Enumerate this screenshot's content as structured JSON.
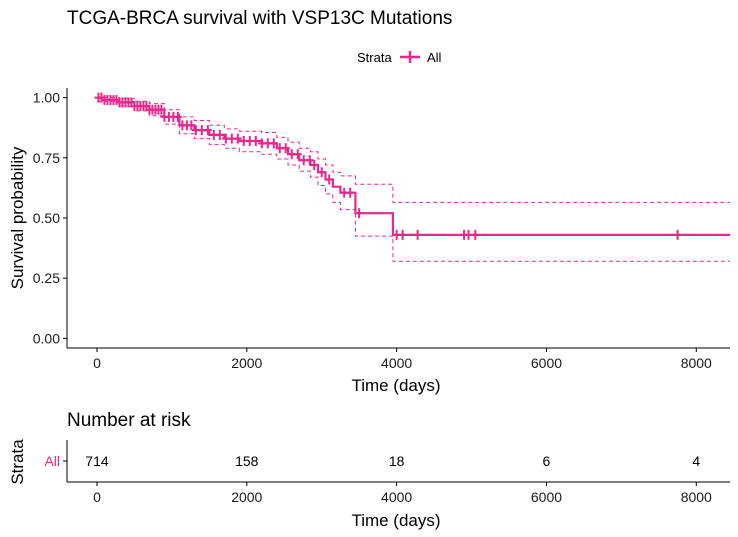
{
  "chart_data": [
    {
      "type": "line",
      "title": "TCGA-BRCA survival with VSP13C Mutations",
      "legend": {
        "title": "Strata",
        "position": "top",
        "entries": [
          "All"
        ]
      },
      "xlabel": "Time (days)",
      "ylabel": "Survival probability",
      "xlim": [
        -400,
        8450
      ],
      "ylim": [
        -0.04,
        1.04
      ],
      "xticks": [
        0,
        2000,
        4000,
        6000,
        8000
      ],
      "yticks": [
        0.0,
        0.25,
        0.5,
        0.75,
        1.0
      ],
      "ytick_labels": [
        "0.00",
        "0.25",
        "0.50",
        "0.75",
        "1.00"
      ],
      "grid": false,
      "color": "#E7298A",
      "series": [
        {
          "name": "All",
          "step": [
            [
              0,
              1.0
            ],
            [
              100,
              0.99
            ],
            [
              300,
              0.98
            ],
            [
              500,
              0.965
            ],
            [
              700,
              0.95
            ],
            [
              900,
              0.92
            ],
            [
              1100,
              0.885
            ],
            [
              1300,
              0.865
            ],
            [
              1500,
              0.845
            ],
            [
              1700,
              0.83
            ],
            [
              1900,
              0.82
            ],
            [
              2200,
              0.81
            ],
            [
              2400,
              0.79
            ],
            [
              2550,
              0.765
            ],
            [
              2700,
              0.74
            ],
            [
              2850,
              0.72
            ],
            [
              2950,
              0.69
            ],
            [
              3050,
              0.66
            ],
            [
              3150,
              0.63
            ],
            [
              3250,
              0.605
            ],
            [
              3450,
              0.52
            ],
            [
              3950,
              0.43
            ],
            [
              8450,
              0.43
            ]
          ],
          "upper": [
            [
              0,
              1.0
            ],
            [
              300,
              0.995
            ],
            [
              500,
              0.985
            ],
            [
              700,
              0.975
            ],
            [
              900,
              0.95
            ],
            [
              1100,
              0.92
            ],
            [
              1300,
              0.905
            ],
            [
              1500,
              0.885
            ],
            [
              1700,
              0.87
            ],
            [
              1900,
              0.86
            ],
            [
              2200,
              0.855
            ],
            [
              2400,
              0.835
            ],
            [
              2550,
              0.815
            ],
            [
              2700,
              0.79
            ],
            [
              2850,
              0.775
            ],
            [
              2950,
              0.745
            ],
            [
              3050,
              0.72
            ],
            [
              3150,
              0.69
            ],
            [
              3250,
              0.675
            ],
            [
              3450,
              0.64
            ],
            [
              3950,
              0.565
            ],
            [
              8450,
              0.565
            ]
          ],
          "lower": [
            [
              0,
              0.985
            ],
            [
              300,
              0.965
            ],
            [
              500,
              0.945
            ],
            [
              700,
              0.925
            ],
            [
              900,
              0.89
            ],
            [
              1100,
              0.85
            ],
            [
              1300,
              0.83
            ],
            [
              1500,
              0.805
            ],
            [
              1700,
              0.79
            ],
            [
              1900,
              0.775
            ],
            [
              2200,
              0.765
            ],
            [
              2400,
              0.745
            ],
            [
              2550,
              0.72
            ],
            [
              2700,
              0.695
            ],
            [
              2850,
              0.67
            ],
            [
              2950,
              0.635
            ],
            [
              3050,
              0.6
            ],
            [
              3150,
              0.565
            ],
            [
              3250,
              0.535
            ],
            [
              3450,
              0.425
            ],
            [
              3950,
              0.32
            ],
            [
              8450,
              0.32
            ]
          ],
          "censor_times": [
            20,
            60,
            100,
            140,
            180,
            220,
            260,
            300,
            340,
            380,
            420,
            460,
            500,
            540,
            580,
            620,
            660,
            700,
            740,
            780,
            820,
            860,
            900,
            960,
            1020,
            1080,
            1140,
            1200,
            1260,
            1320,
            1400,
            1480,
            1560,
            1640,
            1720,
            1800,
            1880,
            1960,
            2040,
            2120,
            2200,
            2280,
            2360,
            2440,
            2520,
            2600,
            2680,
            2760,
            2840,
            2900,
            3000,
            3100,
            3300,
            3380,
            3500,
            4000,
            4080,
            4280,
            4900,
            4960,
            5050,
            7750
          ]
        }
      ]
    },
    {
      "type": "table",
      "title": "Number at risk",
      "xlabel": "Time (days)",
      "ylabel": "Strata",
      "xlim": [
        -400,
        8450
      ],
      "xticks": [
        0,
        2000,
        4000,
        6000,
        8000
      ],
      "rows": [
        {
          "label": "All",
          "times": [
            0,
            2000,
            4000,
            6000,
            8000
          ],
          "counts": [
            714,
            158,
            18,
            6,
            4
          ]
        }
      ]
    }
  ]
}
